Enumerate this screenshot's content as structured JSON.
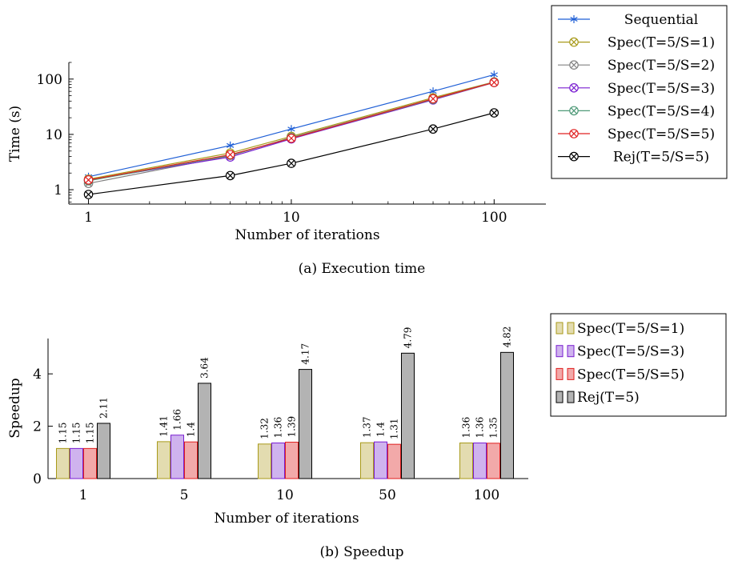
{
  "chart_data": [
    {
      "type": "line",
      "caption": "(a) Execution time",
      "xlabel": "Number of iterations",
      "ylabel": "Time (s)",
      "x_scale": "log",
      "y_scale": "log",
      "x_ticks": [
        "1",
        "10",
        "100"
      ],
      "y_ticks": [
        "1",
        "10",
        "100"
      ],
      "xlim": [
        0.8,
        180
      ],
      "ylim": [
        0.55,
        200
      ],
      "x": [
        1,
        5,
        10,
        50,
        100
      ],
      "legend_placement": "outside-right",
      "series": [
        {
          "name": "Sequential",
          "color": "#1f5fd6",
          "marker": "star",
          "values": [
            1.72,
            6.3,
            12.5,
            60,
            120
          ]
        },
        {
          "name": "Spec(T=5/S=1)",
          "color": "#a89a1a",
          "marker": "circle-cross",
          "values": [
            1.55,
            4.6,
            9.2,
            46,
            89
          ]
        },
        {
          "name": "Spec(T=5/S=2)",
          "color": "#808080",
          "marker": "circle-cross",
          "values": [
            1.3,
            4.1,
            8.8,
            44,
            88
          ]
        },
        {
          "name": "Spec(T=5/S=3)",
          "color": "#7a1fd1",
          "marker": "circle-cross",
          "values": [
            1.5,
            3.9,
            8.3,
            42,
            87
          ]
        },
        {
          "name": "Spec(T=5/S=4)",
          "color": "#4f9a78",
          "marker": "circle-cross",
          "values": [
            1.45,
            4.2,
            8.6,
            43,
            87
          ]
        },
        {
          "name": "Spec(T=5/S=5)",
          "color": "#e02020",
          "marker": "circle-cross",
          "values": [
            1.5,
            4.3,
            8.5,
            44,
            87
          ]
        },
        {
          "name": "Rej(T=5/S=5)",
          "color": "#000000",
          "marker": "circle-cross",
          "values": [
            0.82,
            1.8,
            3.0,
            12.5,
            24.5
          ]
        }
      ]
    },
    {
      "type": "bar",
      "caption": "(b) Speedup",
      "xlabel": "Number of iterations",
      "ylabel": "Speedup",
      "categories": [
        "1",
        "5",
        "10",
        "50",
        "100"
      ],
      "y_ticks": [
        "0",
        "2",
        "4"
      ],
      "ylim": [
        0,
        5.35
      ],
      "legend_placement": "outside-right",
      "series": [
        {
          "name": "Spec(T=5/S=1)",
          "fill": "#e3dcb0",
          "stroke": "#a89a1a",
          "values": [
            1.15,
            1.41,
            1.32,
            1.37,
            1.36
          ],
          "labels": [
            "1.15",
            "1.41",
            "1.32",
            "1.37",
            "1.36"
          ]
        },
        {
          "name": "Spec(T=5/S=3)",
          "fill": "#cfb3ee",
          "stroke": "#7a1fd1",
          "values": [
            1.15,
            1.66,
            1.36,
            1.4,
            1.36
          ],
          "labels": [
            "1.15",
            "1.66",
            "1.36",
            "1.4",
            "1.36"
          ]
        },
        {
          "name": "Spec(T=5/S=5)",
          "fill": "#f2a9a9",
          "stroke": "#e02020",
          "values": [
            1.15,
            1.4,
            1.39,
            1.31,
            1.35
          ],
          "labels": [
            "1.15",
            "1.4",
            "1.39",
            "1.31",
            "1.35"
          ]
        },
        {
          "name": "Rej(T=5)",
          "fill": "#b3b3b3",
          "stroke": "#000000",
          "values": [
            2.11,
            3.64,
            4.17,
            4.79,
            4.82
          ],
          "labels": [
            "2.11",
            "3.64",
            "4.17",
            "4.79",
            "4.82"
          ]
        }
      ]
    }
  ]
}
